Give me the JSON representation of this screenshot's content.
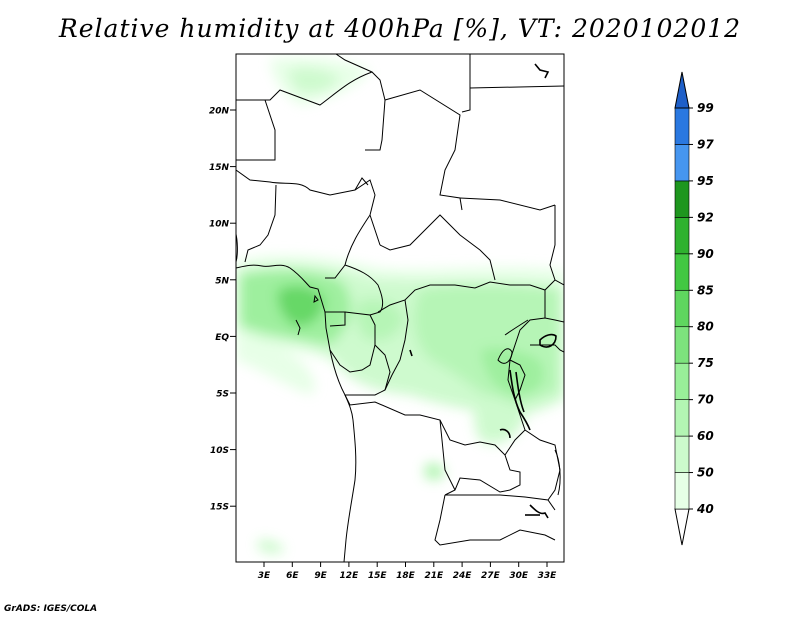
{
  "title": "Relative humidity at 400hPa [%], VT: 2020102012",
  "credit": "GrADS: IGES/COLA",
  "map": {
    "lat_labels": [
      "20N",
      "15N",
      "10N",
      "5N",
      "EQ",
      "5S",
      "10S",
      "15S"
    ],
    "lon_labels": [
      "3E",
      "6E",
      "9E",
      "12E",
      "15E",
      "18E",
      "21E",
      "24E",
      "27E",
      "30E",
      "33E"
    ]
  },
  "colorbar": {
    "labels": [
      "40",
      "50",
      "60",
      "70",
      "75",
      "80",
      "85",
      "90",
      "92",
      "95",
      "97",
      "99"
    ],
    "colors": [
      "#ffffff",
      "#e6ffe6",
      "#ccfacc",
      "#b3f5b3",
      "#99ef99",
      "#7de37d",
      "#5fd65f",
      "#42c842",
      "#2fb22f",
      "#1e961e",
      "#4696f0",
      "#2a78e0",
      "#1e5fc8"
    ]
  }
}
